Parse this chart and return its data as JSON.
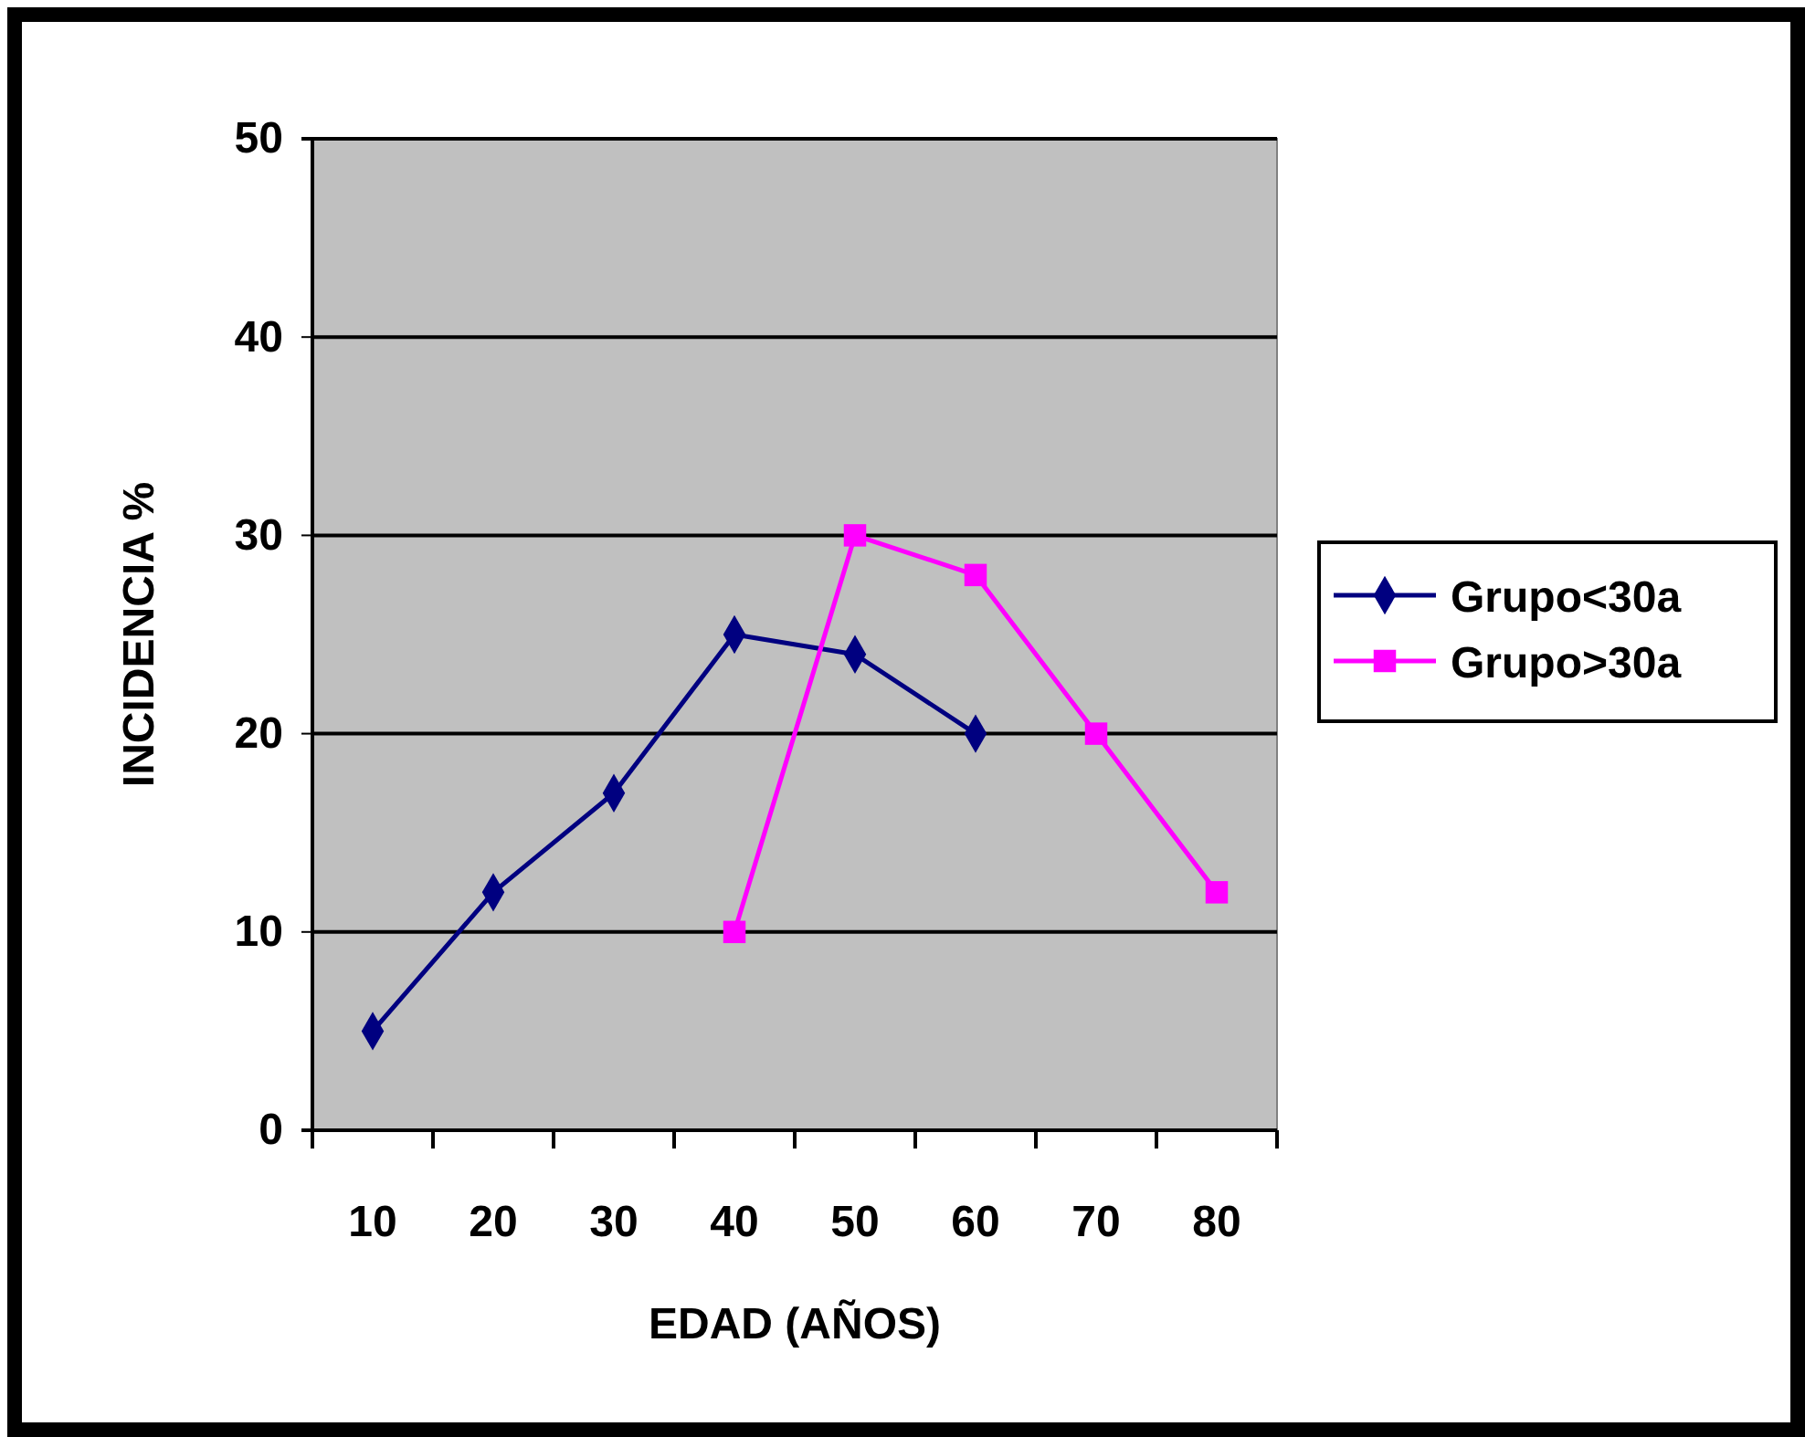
{
  "chart_data": {
    "type": "line",
    "xlabel": "EDAD (AÑOS)",
    "ylabel": "INCIDENCIA %",
    "categories": [
      "10",
      "20",
      "30",
      "40",
      "50",
      "60",
      "70",
      "80"
    ],
    "series": [
      {
        "name": "Grupo<30a",
        "color": "#000080",
        "marker": "diamond",
        "values": [
          5,
          12,
          17,
          25,
          24,
          20,
          null,
          null
        ]
      },
      {
        "name": "Grupo>30a",
        "color": "#ff00ff",
        "marker": "square",
        "values": [
          null,
          null,
          null,
          10,
          30,
          28,
          20,
          12
        ]
      }
    ],
    "ylim": [
      0,
      50
    ],
    "yticks": [
      0,
      10,
      20,
      30,
      40,
      50
    ],
    "grid": "y",
    "legend": "right"
  }
}
